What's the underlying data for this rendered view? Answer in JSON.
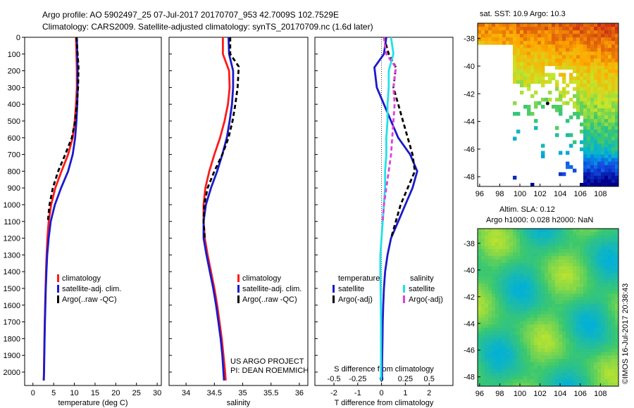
{
  "header": {
    "line1": "Argo profile: AO 5902497_25 07-Jul-2017 20170707_953 42.7009S 102.7529E",
    "line2": "Climatology: CARS2009. Satellite-adjusted climatology: synTS_20170709.nc (1.6d later)"
  },
  "colors": {
    "climatology": "#ff1a1a",
    "satellite": "#1a1acc",
    "argo": "#000000",
    "sat_temp_diff": "#1a1acc",
    "sat_sal_diff": "#22e0e8",
    "argo_sal_diff": "#e040e0"
  },
  "chart_data": [
    {
      "id": "temperature",
      "type": "line",
      "xlabel": "temperature (deg C)",
      "xlim": [
        -2,
        31
      ],
      "xticks": [
        0,
        5,
        10,
        15,
        20,
        25,
        30
      ],
      "ylim": [
        2080,
        0
      ],
      "yticks": [
        0,
        100,
        200,
        300,
        400,
        500,
        600,
        700,
        800,
        900,
        1000,
        1100,
        1200,
        1300,
        1400,
        1500,
        1600,
        1700,
        1800,
        1900,
        2000
      ],
      "legend": [
        "climatology",
        "satellite-adj. clim.",
        "Argo(..raw -QC)"
      ],
      "series": [
        {
          "name": "climatology",
          "style": "red",
          "x": [
            10.4,
            10.5,
            10.6,
            10.6,
            10.4,
            10.1,
            9.6,
            8.5,
            6.9,
            5.4,
            4.4,
            3.8,
            3.5,
            3.3,
            3.15,
            3.05,
            2.95,
            2.85,
            2.78,
            2.72,
            2.66,
            2.6
          ],
          "y": [
            0,
            100,
            200,
            300,
            400,
            500,
            600,
            700,
            800,
            900,
            1000,
            1100,
            1200,
            1300,
            1400,
            1500,
            1600,
            1700,
            1800,
            1900,
            2000,
            2050
          ]
        },
        {
          "name": "satellite-adj. clim.",
          "style": "blue",
          "x": [
            10.6,
            10.7,
            10.8,
            10.8,
            10.7,
            10.5,
            10.2,
            9.6,
            8.5,
            6.8,
            5.3,
            4.3,
            3.8,
            3.45,
            3.25,
            3.1,
            3.0,
            2.9,
            2.82,
            2.75,
            2.68,
            2.63
          ],
          "y": [
            0,
            100,
            200,
            300,
            400,
            500,
            600,
            700,
            800,
            900,
            1000,
            1100,
            1200,
            1300,
            1400,
            1500,
            1600,
            1700,
            1800,
            1900,
            2000,
            2050
          ]
        },
        {
          "name": "Argo(..raw -QC)",
          "style": "black-dash",
          "x": [
            10.5,
            10.8,
            11.0,
            10.9,
            10.6,
            10.2,
            9.4,
            7.8,
            6.1,
            4.8,
            4.0,
            3.6
          ],
          "y": [
            0,
            100,
            180,
            300,
            400,
            500,
            600,
            700,
            800,
            900,
            1000,
            1100
          ]
        }
      ],
      "footer_text": []
    },
    {
      "id": "salinity",
      "type": "line",
      "xlabel": "salinity",
      "xlim": [
        33.7,
        36.15
      ],
      "xticks": [
        34,
        34.5,
        35,
        35.5,
        36
      ],
      "ylim": [
        2080,
        0
      ],
      "yticks": [
        0,
        100,
        200,
        300,
        400,
        500,
        600,
        700,
        800,
        900,
        1000,
        1100,
        1200,
        1300,
        1400,
        1500,
        1600,
        1700,
        1800,
        1900,
        2000
      ],
      "legend": [
        "climatology",
        "satellite-adj. clim.",
        "Argo(..raw -QC)"
      ],
      "series": [
        {
          "name": "climatology",
          "style": "red",
          "x": [
            34.65,
            34.65,
            34.76,
            34.77,
            34.74,
            34.68,
            34.6,
            34.5,
            34.41,
            34.34,
            34.31,
            34.31,
            34.33,
            34.38,
            34.44,
            34.5,
            34.55,
            34.59,
            34.63,
            34.66,
            34.69,
            34.7
          ],
          "y": [
            0,
            100,
            200,
            300,
            400,
            500,
            600,
            700,
            800,
            900,
            1000,
            1100,
            1200,
            1300,
            1400,
            1500,
            1600,
            1700,
            1800,
            1900,
            2000,
            2050
          ]
        },
        {
          "name": "satellite-adj. clim.",
          "style": "blue",
          "x": [
            34.75,
            34.76,
            34.83,
            34.83,
            34.81,
            34.77,
            34.72,
            34.64,
            34.55,
            34.44,
            34.35,
            34.31,
            34.31,
            34.36,
            34.42,
            34.48,
            34.53,
            34.57,
            34.61,
            34.64,
            34.66,
            34.67
          ],
          "y": [
            0,
            100,
            200,
            300,
            400,
            500,
            600,
            700,
            800,
            900,
            1000,
            1100,
            1200,
            1300,
            1400,
            1500,
            1600,
            1700,
            1800,
            1900,
            2000,
            2050
          ]
        },
        {
          "name": "Argo(..raw -QC)",
          "style": "black-dash",
          "x": [
            34.78,
            34.78,
            34.93,
            34.91,
            34.87,
            34.82,
            34.75,
            34.64,
            34.5,
            34.38,
            34.32,
            34.31,
            34.33
          ],
          "y": [
            0,
            100,
            175,
            300,
            400,
            500,
            600,
            700,
            800,
            900,
            1000,
            1100,
            1200
          ]
        }
      ],
      "footer_text": [
        "US ARGO PROJECT",
        "PI: DEAN ROEMMICH"
      ]
    },
    {
      "id": "difference",
      "type": "line",
      "xlabel": "T difference from climatology",
      "xlabel_top": "S difference from climatology",
      "xlim": [
        -2.8,
        3.0
      ],
      "xticks": [
        -2,
        -1,
        0,
        1,
        2
      ],
      "s_tick_labels": [
        "-0.5",
        "-0.25",
        "0",
        "0.25",
        "0.5"
      ],
      "s_tick_t": [
        -2,
        -1,
        0,
        1,
        2
      ],
      "ylim": [
        2080,
        0
      ],
      "yticks": [
        0,
        100,
        200,
        300,
        400,
        500,
        600,
        700,
        800,
        900,
        1000,
        1100,
        1200,
        1300,
        1400,
        1500,
        1600,
        1700,
        1800,
        1900,
        2000
      ],
      "legend_headers": [
        "temperature",
        "salinity"
      ],
      "legend": [
        "satellite",
        "Argo(-adj)",
        "satellite",
        "Argo(-adj)"
      ],
      "series": [
        {
          "name": "temperature satellite",
          "style": "blue",
          "x": [
            0.2,
            0.1,
            -0.3,
            -0.2,
            0.1,
            0.4,
            0.7,
            1.2,
            1.5,
            1.3,
            1.0,
            0.7,
            0.4,
            0.25,
            0.15,
            0.1,
            0.07,
            0.05,
            0.04,
            0.03,
            0.02,
            0.02
          ],
          "y": [
            0,
            100,
            180,
            300,
            400,
            500,
            600,
            700,
            800,
            900,
            1000,
            1100,
            1200,
            1300,
            1400,
            1500,
            1600,
            1700,
            1800,
            1900,
            2000,
            2050
          ]
        },
        {
          "name": "temperature Argo(-adj)",
          "style": "black-dash",
          "x": [
            0.1,
            0.3,
            0.6,
            0.5,
            0.7,
            0.9,
            1.1,
            1.3,
            1.4,
            1.1,
            0.8,
            0.6,
            0.4
          ],
          "y": [
            0,
            100,
            180,
            300,
            400,
            500,
            600,
            700,
            800,
            900,
            1000,
            1100,
            1200
          ]
        },
        {
          "name": "salinity satellite",
          "style": "cyan",
          "x": [
            0.4,
            0.5,
            0.3,
            0.3,
            0.25,
            0.25,
            0.2,
            0.2,
            0.15,
            0.15,
            0.1,
            0.05,
            0.0,
            -0.05,
            -0.05,
            -0.04,
            -0.03,
            -0.02,
            -0.02,
            -0.02,
            -0.02,
            -0.02
          ],
          "y": [
            0,
            100,
            200,
            300,
            400,
            500,
            600,
            700,
            800,
            900,
            1000,
            1100,
            1200,
            1300,
            1400,
            1500,
            1600,
            1700,
            1800,
            1900,
            2000,
            2050
          ]
        },
        {
          "name": "salinity Argo(-adj)",
          "style": "magenta-dash",
          "x": [
            0.1,
            0.2,
            0.6,
            0.5,
            0.55,
            0.5,
            0.45,
            0.4,
            0.3,
            0.2,
            0.1,
            0.05
          ],
          "y": [
            0,
            100,
            180,
            300,
            400,
            500,
            600,
            700,
            800,
            900,
            1000,
            1100
          ]
        }
      ],
      "footer_text": []
    },
    {
      "id": "sst-map",
      "type": "heatmap",
      "title": "sat. SST: 10.9 Argo: 10.3",
      "xticks": [
        96,
        98,
        100,
        102,
        104,
        106,
        108
      ],
      "yticks": [
        -38,
        -40,
        -42,
        -44,
        -46,
        -48
      ],
      "xlim": [
        95.8,
        109.8
      ],
      "ylim": [
        -48.7,
        -36.9
      ],
      "argo_position": [
        102.7529,
        -42.7009
      ]
    },
    {
      "id": "sla-map",
      "type": "heatmap",
      "title_line1": "Altim. SLA: 0.12",
      "title_line2": "Argo h1000: 0.028 h2000: NaN",
      "xticks": [
        96,
        98,
        100,
        102,
        104,
        106,
        108
      ],
      "yticks": [
        -38,
        -40,
        -42,
        -44,
        -46,
        -48
      ],
      "xlim": [
        95.8,
        109.8
      ],
      "ylim": [
        -48.7,
        -36.9
      ]
    }
  ],
  "stamp": "©IMOS 16-Jul-2017 20:38:43"
}
